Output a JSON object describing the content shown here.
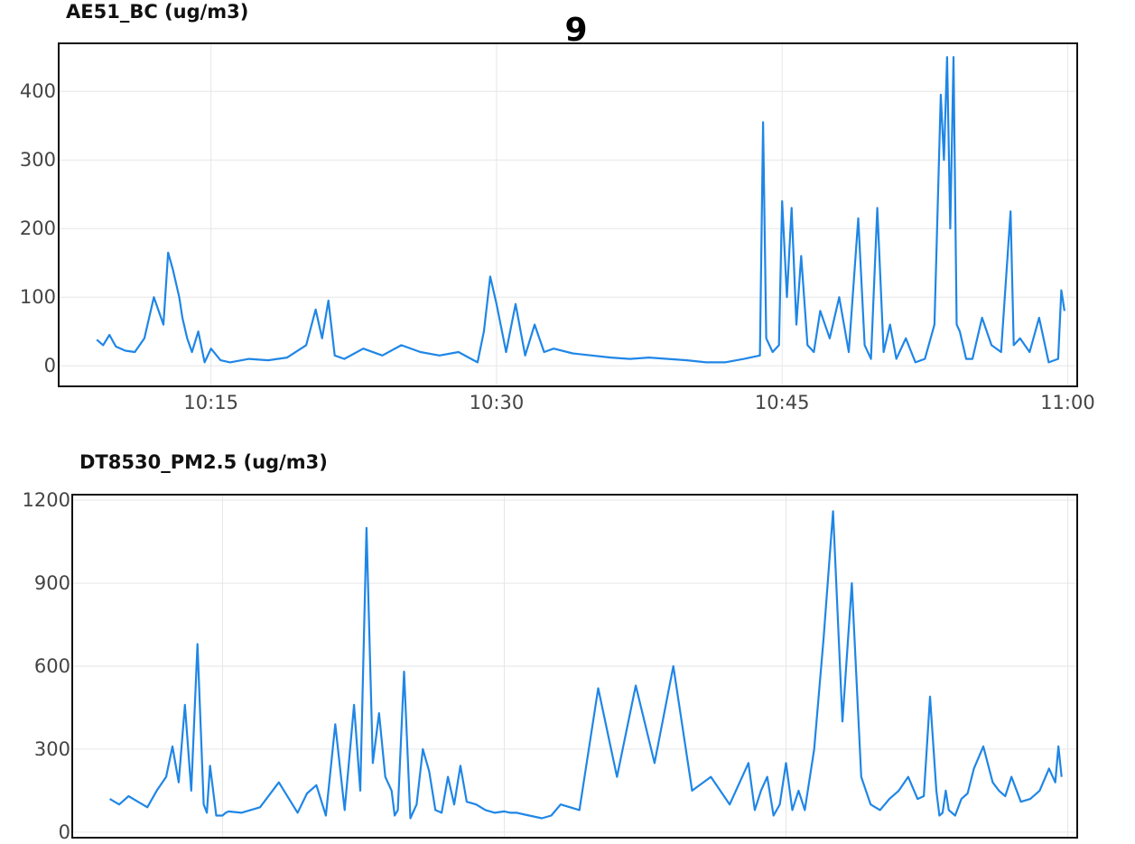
{
  "page_title": "9",
  "colors": {
    "line": "#1f86e6",
    "grid": "#e6e6e6",
    "frame": "#111111",
    "text": "#444444"
  },
  "chart_data": [
    {
      "type": "line",
      "title": "AE51_BC (ug/m3)",
      "xlabel": "",
      "ylabel": "",
      "grid": true,
      "ylim": [
        -30,
        470
      ],
      "xlim": [
        "10:07:00",
        "11:00:30"
      ],
      "y_ticks": [
        0,
        100,
        200,
        300,
        400
      ],
      "x_ticks": [
        "10:15",
        "10:30",
        "10:45",
        "11:00"
      ],
      "series": [
        {
          "x": [
            "10:09:00",
            "10:09:20",
            "10:09:40",
            "10:10:00",
            "10:10:30",
            "10:11:00",
            "10:11:30",
            "10:12:00",
            "10:12:30",
            "10:12:45",
            "10:13:00",
            "10:13:10",
            "10:13:20",
            "10:13:30",
            "10:13:45",
            "10:14:00",
            "10:14:20",
            "10:14:40",
            "10:15:00",
            "10:15:30",
            "10:16:00",
            "10:17:00",
            "10:18:00",
            "10:19:00",
            "10:20:00",
            "10:20:30",
            "10:20:50",
            "10:21:10",
            "10:21:30",
            "10:22:00",
            "10:23:00",
            "10:24:00",
            "10:25:00",
            "10:26:00",
            "10:27:00",
            "10:28:00",
            "10:28:40",
            "10:29:00",
            "10:29:20",
            "10:29:40",
            "10:30:00",
            "10:30:30",
            "10:31:00",
            "10:31:30",
            "10:32:00",
            "10:32:30",
            "10:33:00",
            "10:34:00",
            "10:35:00",
            "10:36:00",
            "10:37:00",
            "10:38:00",
            "10:39:00",
            "10:40:00",
            "10:41:00",
            "10:42:00",
            "10:43:00",
            "10:43:50",
            "10:44:00",
            "10:44:10",
            "10:44:30",
            "10:44:50",
            "10:45:00",
            "10:45:15",
            "10:45:30",
            "10:45:45",
            "10:46:00",
            "10:46:20",
            "10:46:40",
            "10:47:00",
            "10:47:30",
            "10:48:00",
            "10:48:30",
            "10:49:00",
            "10:49:20",
            "10:49:40",
            "10:50:00",
            "10:50:20",
            "10:50:40",
            "10:51:00",
            "10:51:30",
            "10:52:00",
            "10:52:30",
            "10:53:00",
            "10:53:20",
            "10:53:30",
            "10:53:40",
            "10:53:50",
            "10:54:00",
            "10:54:10",
            "10:54:20",
            "10:54:40",
            "10:55:00",
            "10:55:30",
            "10:56:00",
            "10:56:30",
            "10:57:00",
            "10:57:10",
            "10:57:30",
            "10:58:00",
            "10:58:30",
            "10:59:00",
            "10:59:30",
            "10:59:40",
            "10:59:50"
          ],
          "y": [
            38,
            30,
            45,
            28,
            22,
            20,
            40,
            100,
            60,
            165,
            140,
            120,
            100,
            70,
            40,
            20,
            50,
            5,
            25,
            8,
            5,
            10,
            8,
            12,
            30,
            82,
            40,
            95,
            15,
            10,
            25,
            15,
            30,
            20,
            15,
            20,
            10,
            5,
            50,
            130,
            90,
            20,
            90,
            15,
            60,
            20,
            25,
            18,
            15,
            12,
            10,
            12,
            10,
            8,
            5,
            5,
            10,
            15,
            355,
            40,
            20,
            30,
            240,
            100,
            230,
            60,
            160,
            30,
            20,
            80,
            40,
            100,
            20,
            215,
            30,
            10,
            230,
            20,
            60,
            10,
            40,
            5,
            10,
            60,
            395,
            300,
            450,
            200,
            450,
            60,
            50,
            10,
            10,
            70,
            30,
            20,
            225,
            30,
            40,
            20,
            70,
            5,
            10,
            110,
            80
          ]
        }
      ]
    },
    {
      "type": "line",
      "title": "DT8530_PM2.5 (ug/m3)",
      "xlabel": "",
      "ylabel": "",
      "grid": true,
      "ylim": [
        -20,
        1220
      ],
      "xlim": [
        "10:07:00",
        "11:00:30"
      ],
      "y_ticks": [
        0,
        300,
        600,
        900,
        1200
      ],
      "x_ticks": [],
      "series": [
        {
          "x": [
            "10:09:00",
            "10:09:30",
            "10:10:00",
            "10:10:30",
            "10:11:00",
            "10:11:30",
            "10:12:00",
            "10:12:20",
            "10:12:40",
            "10:13:00",
            "10:13:20",
            "10:13:40",
            "10:14:00",
            "10:14:10",
            "10:14:20",
            "10:14:40",
            "10:15:00",
            "10:15:10",
            "10:15:20",
            "10:16:00",
            "10:17:00",
            "10:18:00",
            "10:19:00",
            "10:19:30",
            "10:20:00",
            "10:20:30",
            "10:21:00",
            "10:21:30",
            "10:22:00",
            "10:22:20",
            "10:22:40",
            "10:23:00",
            "10:23:20",
            "10:23:40",
            "10:24:00",
            "10:24:10",
            "10:24:20",
            "10:24:40",
            "10:25:00",
            "10:25:20",
            "10:25:40",
            "10:26:00",
            "10:26:20",
            "10:26:40",
            "10:27:00",
            "10:27:20",
            "10:27:40",
            "10:28:00",
            "10:28:30",
            "10:29:00",
            "10:29:30",
            "10:30:00",
            "10:30:20",
            "10:30:40",
            "10:31:00",
            "10:31:20",
            "10:31:40",
            "10:32:00",
            "10:32:30",
            "10:33:00",
            "10:34:00",
            "10:35:00",
            "10:36:00",
            "10:37:00",
            "10:38:00",
            "10:39:00",
            "10:40:00",
            "10:41:00",
            "10:42:00",
            "10:43:00",
            "10:43:20",
            "10:43:40",
            "10:44:00",
            "10:44:20",
            "10:44:40",
            "10:45:00",
            "10:45:20",
            "10:45:40",
            "10:46:00",
            "10:46:30",
            "10:47:00",
            "10:47:30",
            "10:48:00",
            "10:48:30",
            "10:49:00",
            "10:49:30",
            "10:50:00",
            "10:50:30",
            "10:51:00",
            "10:51:30",
            "10:52:00",
            "10:52:20",
            "10:52:40",
            "10:53:00",
            "10:53:10",
            "10:53:20",
            "10:53:30",
            "10:53:40",
            "10:54:00",
            "10:54:20",
            "10:54:40",
            "10:55:00",
            "10:55:30",
            "10:56:00",
            "10:56:20",
            "10:56:40",
            "10:57:00",
            "10:57:30",
            "10:58:00",
            "10:58:30",
            "10:59:00",
            "10:59:20",
            "10:59:30",
            "10:59:40"
          ],
          "y": [
            120,
            100,
            130,
            110,
            90,
            150,
            200,
            310,
            180,
            460,
            150,
            680,
            100,
            70,
            240,
            60,
            60,
            70,
            75,
            70,
            90,
            180,
            70,
            140,
            170,
            60,
            390,
            80,
            460,
            150,
            1100,
            250,
            430,
            200,
            150,
            60,
            80,
            580,
            50,
            100,
            300,
            220,
            80,
            70,
            200,
            100,
            240,
            110,
            100,
            80,
            70,
            75,
            70,
            70,
            65,
            60,
            55,
            50,
            60,
            100,
            80,
            520,
            200,
            530,
            250,
            600,
            150,
            200,
            100,
            250,
            80,
            150,
            200,
            60,
            100,
            250,
            80,
            150,
            80,
            300,
            700,
            1160,
            400,
            900,
            200,
            100,
            80,
            120,
            150,
            200,
            120,
            130,
            490,
            150,
            60,
            70,
            150,
            80,
            60,
            120,
            140,
            230,
            310,
            180,
            150,
            130,
            200,
            110,
            120,
            150,
            230,
            180,
            310,
            200
          ]
        }
      ]
    }
  ]
}
